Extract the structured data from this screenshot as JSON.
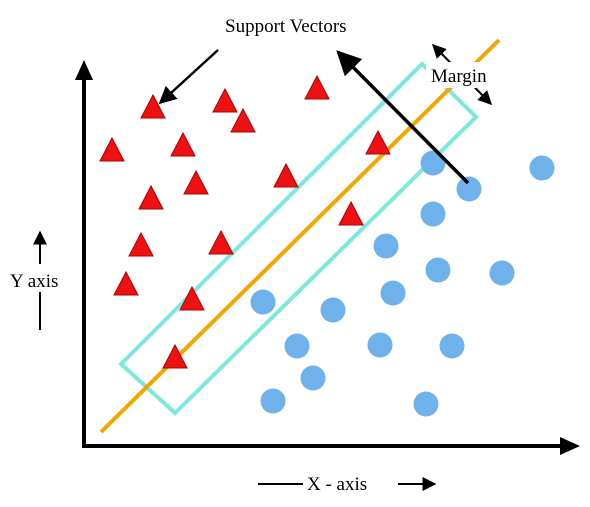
{
  "labels": {
    "support_vectors": "Support Vectors",
    "margin": "Margin",
    "y_axis": "Y axis",
    "x_axis": "X - axis"
  },
  "colors": {
    "triangle": "#ee1111",
    "triangle_stroke": "#b00000",
    "circle": "#6fb1ea",
    "hyperplane": "#f5a400",
    "margin_box": "#7de8dc",
    "axis": "#000000"
  },
  "legend": {
    "class_a": "triangle",
    "class_b": "circle"
  }
}
